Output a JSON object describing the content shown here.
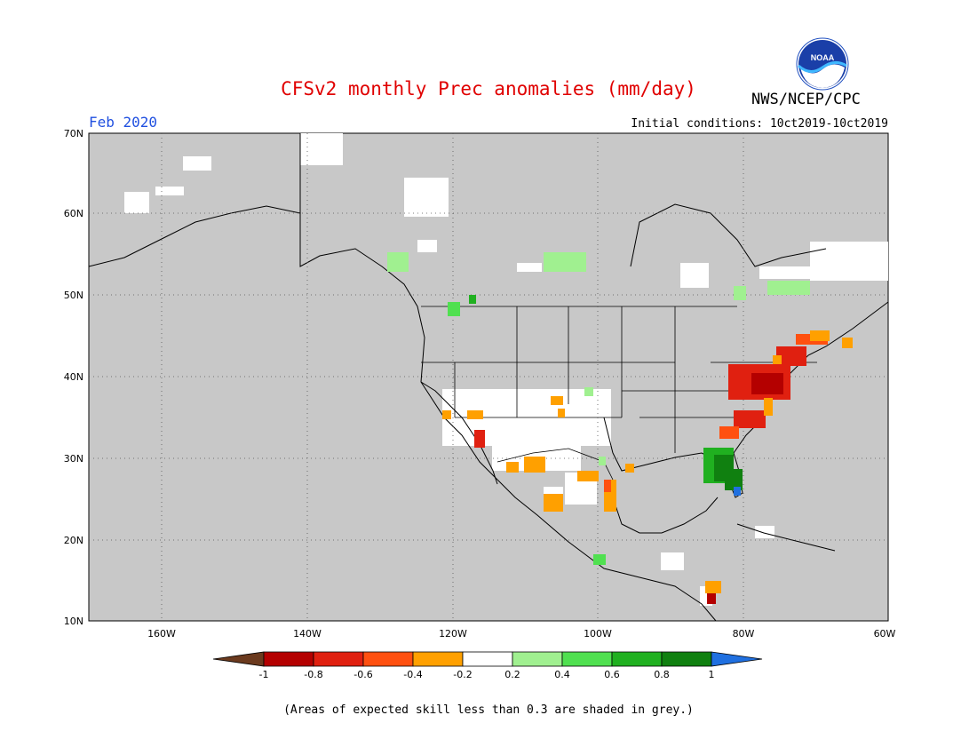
{
  "header": {
    "title": "CFSv2 monthly Prec anomalies (mm/day)",
    "agency": "NWS/NCEP/CPC",
    "logo_text": "NOAA",
    "month_label": "Feb 2020",
    "initial_conditions": "Initial conditions: 10ct2019-10ct2019"
  },
  "axes": {
    "lat_labels": [
      "70N",
      "60N",
      "50N",
      "40N",
      "30N",
      "20N",
      "10N"
    ],
    "lon_labels": [
      "160W",
      "140W",
      "120W",
      "100W",
      "80W",
      "60W"
    ]
  },
  "colorbar": {
    "tick_labels": [
      "-1",
      "-0.8",
      "-0.6",
      "-0.4",
      "-0.2",
      "0.2",
      "0.4",
      "0.6",
      "0.8",
      "1"
    ],
    "colors": [
      "#6b3a1e",
      "#b40000",
      "#e02010",
      "#ff5010",
      "#ffa000",
      "#ffffff",
      "#a0f090",
      "#50e050",
      "#20b020",
      "#108010",
      "#2070e0"
    ]
  },
  "background_colors": {
    "grey_mask": "#c8c8c8",
    "neutral": "#ffffff"
  },
  "footer_note": "(Areas of expected skill less than 0.3 are shaded in grey.)"
}
